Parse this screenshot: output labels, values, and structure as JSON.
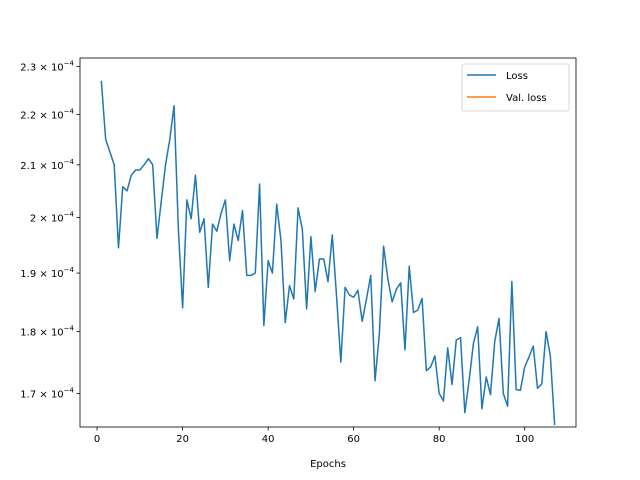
{
  "chart_data": {
    "type": "line",
    "title": "",
    "xlabel": "Epochs",
    "ylabel": "",
    "yscale": "log",
    "xlim": [
      -4,
      112
    ],
    "ylim": [
      0.0001648,
      0.0002318
    ],
    "grid": false,
    "legend_placement": "top-right",
    "x_ticks": [
      0,
      20,
      40,
      60,
      80,
      100
    ],
    "x_tick_labels": [
      "0",
      "20",
      "40",
      "60",
      "80",
      "100"
    ],
    "y_ticks": [
      0.00017,
      0.00018,
      0.00019,
      0.0002,
      0.00021,
      0.00022,
      0.00023
    ],
    "y_tick_labels": [
      {
        "mantissa": "1.7",
        "base": "10",
        "exp": "−4"
      },
      {
        "mantissa": "1.8",
        "base": "10",
        "exp": "−4"
      },
      {
        "mantissa": "1.9",
        "base": "10",
        "exp": "−4"
      },
      {
        "mantissa": "2",
        "base": "10",
        "exp": "−4"
      },
      {
        "mantissa": "2.1",
        "base": "10",
        "exp": "−4"
      },
      {
        "mantissa": "2.2",
        "base": "10",
        "exp": "−4"
      },
      {
        "mantissa": "2.3",
        "base": "10",
        "exp": "−4"
      }
    ],
    "series": [
      {
        "name": "Loss",
        "color": "#1f77b4",
        "x": [
          1,
          2,
          3,
          4,
          5,
          6,
          7,
          8,
          9,
          10,
          11,
          12,
          13,
          14,
          15,
          16,
          17,
          18,
          19,
          20,
          21,
          22,
          23,
          24,
          25,
          26,
          27,
          28,
          29,
          30,
          31,
          32,
          33,
          34,
          35,
          36,
          37,
          38,
          39,
          40,
          41,
          42,
          43,
          44,
          45,
          46,
          47,
          48,
          49,
          50,
          51,
          52,
          53,
          54,
          55,
          56,
          57,
          58,
          59,
          60,
          61,
          62,
          63,
          64,
          65,
          66,
          67,
          68,
          69,
          70,
          71,
          72,
          73,
          74,
          75,
          76,
          77,
          78,
          79,
          80,
          81,
          82,
          83,
          84,
          85,
          86,
          87,
          88,
          89,
          90,
          91,
          92,
          93,
          94,
          95,
          96,
          97,
          98,
          99,
          100,
          101,
          102,
          103,
          104,
          105,
          106,
          107
        ],
        "values": [
          0.0002268,
          0.000215,
          0.0002125,
          0.00021,
          0.0001945,
          0.0002058,
          0.000205,
          0.000208,
          0.000209,
          0.000209,
          0.00021,
          0.0002112,
          0.00021,
          0.0001962,
          0.000203,
          0.00021,
          0.000215,
          0.0002218,
          0.000198,
          0.000184,
          0.0002033,
          0.0001998,
          0.000208,
          0.0001973,
          0.0001998,
          0.0001875,
          0.0001988,
          0.0001975,
          0.0002008,
          0.0002033,
          0.0001922,
          0.0001988,
          0.0001958,
          0.0002013,
          0.0001896,
          0.0001896,
          0.00019,
          0.0002063,
          0.000181,
          0.0001922,
          0.00019,
          0.0002025,
          0.0001958,
          0.0001815,
          0.0001878,
          0.0001855,
          0.0002018,
          0.0001978,
          0.0001838,
          0.0001965,
          0.0001868,
          0.0001925,
          0.0001925,
          0.0001885,
          0.0001968,
          0.000186,
          0.000175,
          0.0001875,
          0.0001862,
          0.0001858,
          0.000187,
          0.0001817,
          0.0001855,
          0.0001896,
          0.000172,
          0.0001795,
          0.0001948,
          0.000189,
          0.000185,
          0.0001872,
          0.0001883,
          0.000177,
          0.0001912,
          0.0001832,
          0.0001836,
          0.0001856,
          0.0001736,
          0.0001742,
          0.000176,
          0.00017,
          0.0001688,
          0.0001773,
          0.0001714,
          0.0001786,
          0.000179,
          0.000167,
          0.000172,
          0.000178,
          0.0001808,
          0.0001676,
          0.0001726,
          0.0001698,
          0.0001784,
          0.0001822,
          0.00017,
          0.000168,
          0.0001885,
          0.0001706,
          0.0001705,
          0.0001742,
          0.0001758,
          0.0001776,
          0.0001708,
          0.0001715,
          0.00018,
          0.000176,
          0.0001652
        ]
      },
      {
        "name": "Val. loss",
        "color": "#ff7f0e",
        "x": [],
        "values": []
      }
    ]
  }
}
